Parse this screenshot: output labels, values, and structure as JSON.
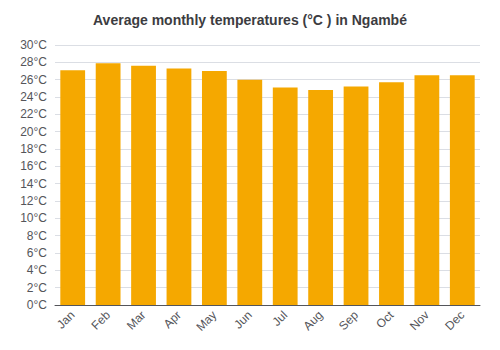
{
  "chart_data": {
    "type": "bar",
    "title": "Average monthly temperatures (°C ) in Ngambé",
    "categories": [
      "Jan",
      "Feb",
      "Mar",
      "Apr",
      "May",
      "Jun",
      "Jul",
      "Aug",
      "Sep",
      "Oct",
      "Nov",
      "Dec"
    ],
    "values": [
      27.1,
      27.9,
      27.6,
      27.3,
      27.0,
      26.0,
      25.1,
      24.8,
      25.2,
      25.7,
      26.5,
      26.5
    ],
    "color": "#F5A800",
    "ylim": [
      0,
      30
    ],
    "yticks": [
      {
        "value": 0,
        "label": "0°C"
      },
      {
        "value": 2,
        "label": "2°C"
      },
      {
        "value": 4,
        "label": "4°C"
      },
      {
        "value": 6,
        "label": "6°C"
      },
      {
        "value": 8,
        "label": "8°C"
      },
      {
        "value": 10,
        "label": "10°C"
      },
      {
        "value": 12,
        "label": "12°C"
      },
      {
        "value": 14,
        "label": "14°C"
      },
      {
        "value": 16,
        "label": "16°C"
      },
      {
        "value": 18,
        "label": "18°C"
      },
      {
        "value": 20,
        "label": "20°C"
      },
      {
        "value": 22,
        "label": "22°C"
      },
      {
        "value": 24,
        "label": "24°C"
      },
      {
        "value": 26,
        "label": "26°C"
      },
      {
        "value": 28,
        "label": "28°C"
      },
      {
        "value": 30,
        "label": "30°C"
      }
    ],
    "grid": true
  }
}
